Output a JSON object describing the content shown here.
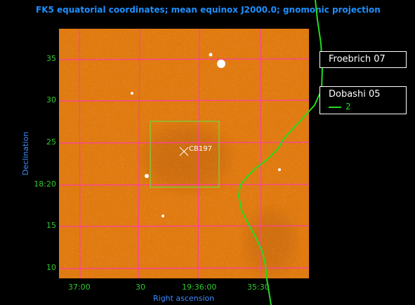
{
  "header": {
    "title": "FK5 equatorial coordinates; mean equinox J2000.0; gnomonic projection"
  },
  "axes": {
    "xlabel": "Right ascension",
    "ylabel": "Declination",
    "xticks": [
      "37:00",
      "30",
      "19:36:00",
      "35:30"
    ],
    "yticks": [
      "35",
      "30",
      "25",
      "18:20",
      "15",
      "10"
    ]
  },
  "object": {
    "label": "CB197"
  },
  "legend": {
    "box1": {
      "title": "Froebrich 07"
    },
    "box2": {
      "title": "Dobashi 05",
      "entry": "2"
    }
  },
  "colors": {
    "title": "#1E90FF",
    "axis_text": "#3B8BFF",
    "tick_text": "#2ECC2E",
    "grid": "#FF3DA8",
    "contour": "#22DD22",
    "selection_box": "#7BD23A",
    "image": "#E07A10"
  },
  "icons": {
    "marker": "x-marker-icon"
  }
}
